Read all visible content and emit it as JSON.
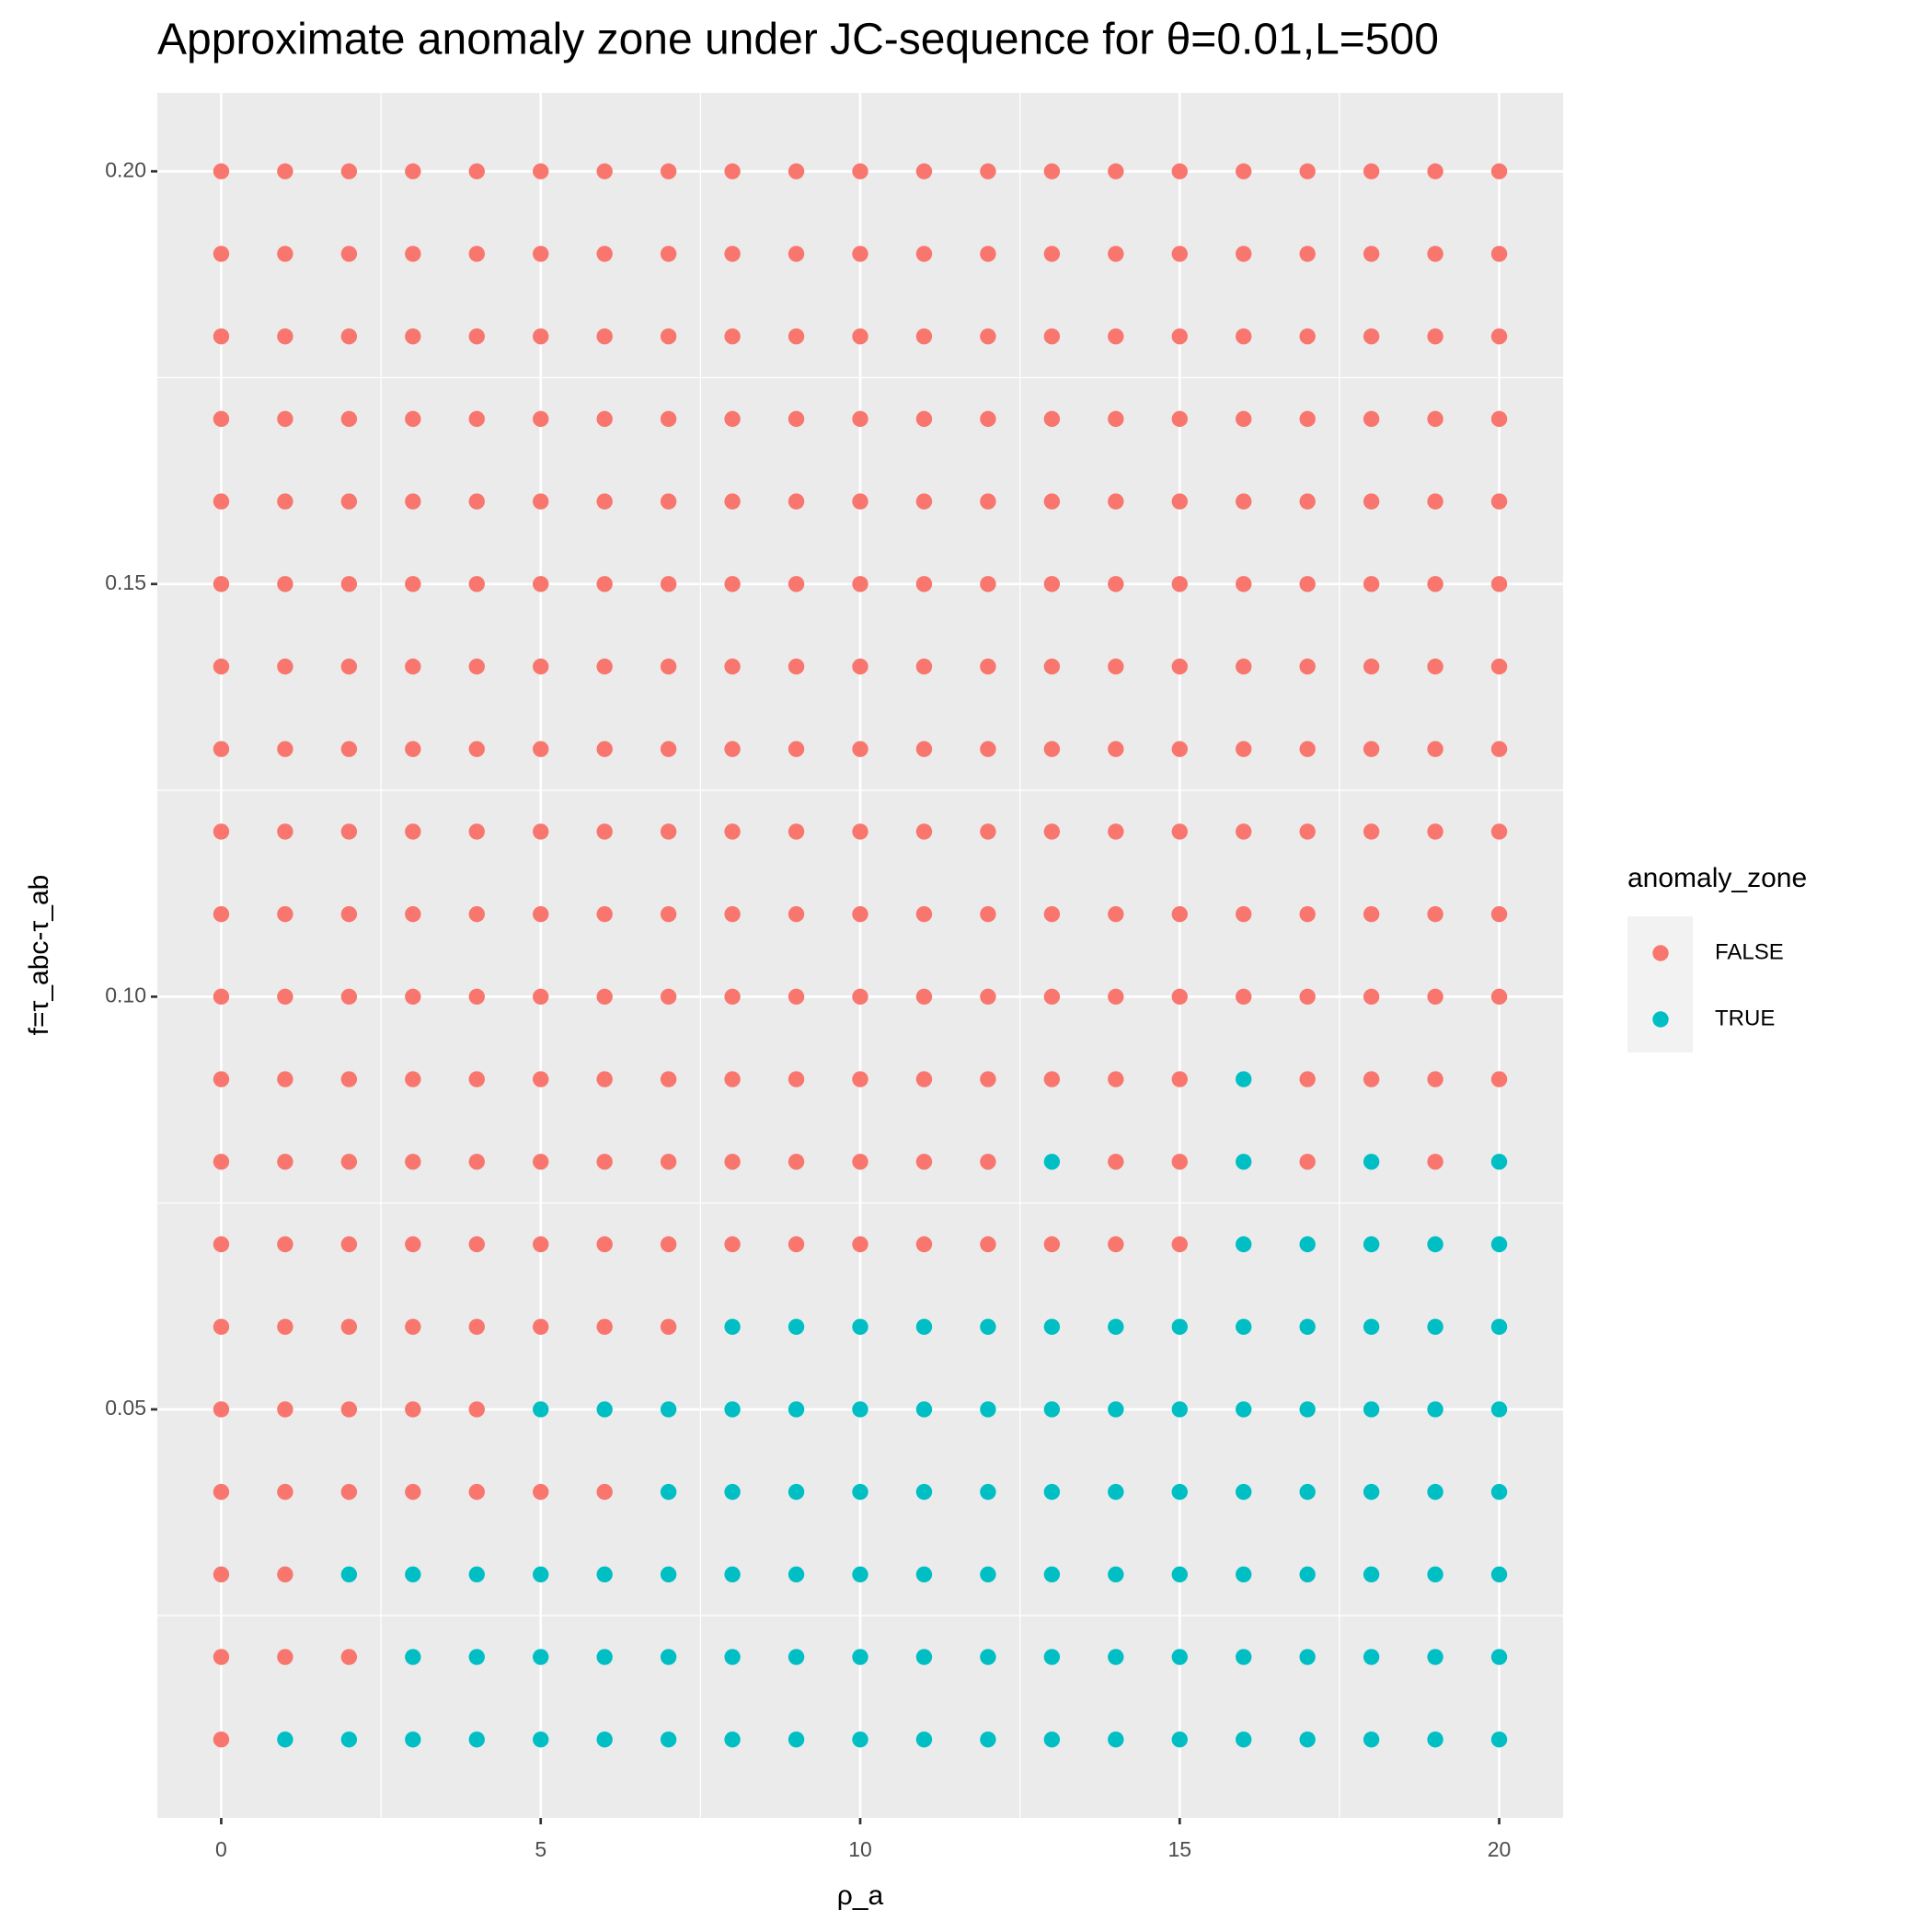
{
  "chart_data": {
    "type": "scatter",
    "title": "Approximate anomaly zone under JC-sequence for θ=0.01,L=500",
    "x_label": "ρ_a",
    "y_label": "f=τ_abc-τ_ab",
    "legend_title": "anomaly_zone",
    "xlim": [
      -1,
      21
    ],
    "ylim": [
      0.0005,
      0.2095
    ],
    "xticks": [
      0,
      5,
      10,
      15,
      20
    ],
    "yticks": [
      0.05,
      {
        "value": 0.1,
        "label": "0.10"
      },
      0.15,
      {
        "value": 0.2,
        "label": "0.20"
      }
    ],
    "grid": true,
    "legend": "right",
    "series": [
      {
        "name": "FALSE",
        "color": "#F8766D",
        "x": [
          0,
          0,
          1,
          2,
          0,
          1,
          0,
          1,
          2,
          3,
          4,
          5,
          6,
          0,
          1,
          2,
          3,
          4,
          0,
          1,
          2,
          3,
          4,
          5,
          6,
          7,
          0,
          1,
          2,
          3,
          4,
          5,
          6,
          7,
          8,
          9,
          10,
          11,
          12,
          13,
          14,
          15,
          0,
          1,
          2,
          3,
          4,
          5,
          6,
          7,
          8,
          9,
          10,
          11,
          12,
          14,
          15,
          17,
          19,
          0,
          1,
          2,
          3,
          4,
          5,
          6,
          7,
          8,
          9,
          10,
          11,
          12,
          13,
          14,
          15,
          17,
          18,
          19,
          20,
          0,
          1,
          2,
          3,
          4,
          5,
          6,
          7,
          8,
          9,
          10,
          11,
          12,
          13,
          14,
          15,
          16,
          17,
          18,
          19,
          20,
          0,
          1,
          2,
          3,
          4,
          5,
          6,
          7,
          8,
          9,
          10,
          11,
          12,
          13,
          14,
          15,
          16,
          17,
          18,
          19,
          20,
          0,
          1,
          2,
          3,
          4,
          5,
          6,
          7,
          8,
          9,
          10,
          11,
          12,
          13,
          14,
          15,
          16,
          17,
          18,
          19,
          20,
          0,
          1,
          2,
          3,
          4,
          5,
          6,
          7,
          8,
          9,
          10,
          11,
          12,
          13,
          14,
          15,
          16,
          17,
          18,
          19,
          20,
          0,
          1,
          2,
          3,
          4,
          5,
          6,
          7,
          8,
          9,
          10,
          11,
          12,
          13,
          14,
          15,
          16,
          17,
          18,
          19,
          20,
          0,
          1,
          2,
          3,
          4,
          5,
          6,
          7,
          8,
          9,
          10,
          11,
          12,
          13,
          14,
          15,
          16,
          17,
          18,
          19,
          20,
          0,
          1,
          2,
          3,
          4,
          5,
          6,
          7,
          8,
          9,
          10,
          11,
          12,
          13,
          14,
          15,
          16,
          17,
          18,
          19,
          20,
          0,
          1,
          2,
          3,
          4,
          5,
          6,
          7,
          8,
          9,
          10,
          11,
          12,
          13,
          14,
          15,
          16,
          17,
          18,
          19,
          20,
          0,
          1,
          2,
          3,
          4,
          5,
          6,
          7,
          8,
          9,
          10,
          11,
          12,
          13,
          14,
          15,
          16,
          17,
          18,
          19,
          20,
          0,
          1,
          2,
          3,
          4,
          5,
          6,
          7,
          8,
          9,
          10,
          11,
          12,
          13,
          14,
          15,
          16,
          17,
          18,
          19,
          20,
          0,
          1,
          2,
          3,
          4,
          5,
          6,
          7,
          8,
          9,
          10,
          11,
          12,
          13,
          14,
          15,
          16,
          17,
          18,
          19,
          20
        ],
        "values": [
          0.01,
          0.02,
          0.02,
          0.02,
          0.03,
          0.03,
          0.04,
          0.04,
          0.04,
          0.04,
          0.04,
          0.04,
          0.04,
          0.05,
          0.05,
          0.05,
          0.05,
          0.05,
          0.06,
          0.06,
          0.06,
          0.06,
          0.06,
          0.06,
          0.06,
          0.06,
          0.07,
          0.07,
          0.07,
          0.07,
          0.07,
          0.07,
          0.07,
          0.07,
          0.07,
          0.07,
          0.07,
          0.07,
          0.07,
          0.07,
          0.07,
          0.07,
          0.08,
          0.08,
          0.08,
          0.08,
          0.08,
          0.08,
          0.08,
          0.08,
          0.08,
          0.08,
          0.08,
          0.08,
          0.08,
          0.08,
          0.08,
          0.08,
          0.08,
          0.09,
          0.09,
          0.09,
          0.09,
          0.09,
          0.09,
          0.09,
          0.09,
          0.09,
          0.09,
          0.09,
          0.09,
          0.09,
          0.09,
          0.09,
          0.09,
          0.09,
          0.09,
          0.09,
          0.09,
          0.1,
          0.1,
          0.1,
          0.1,
          0.1,
          0.1,
          0.1,
          0.1,
          0.1,
          0.1,
          0.1,
          0.1,
          0.1,
          0.1,
          0.1,
          0.1,
          0.1,
          0.1,
          0.1,
          0.1,
          0.1,
          0.11,
          0.11,
          0.11,
          0.11,
          0.11,
          0.11,
          0.11,
          0.11,
          0.11,
          0.11,
          0.11,
          0.11,
          0.11,
          0.11,
          0.11,
          0.11,
          0.11,
          0.11,
          0.11,
          0.11,
          0.11,
          0.12,
          0.12,
          0.12,
          0.12,
          0.12,
          0.12,
          0.12,
          0.12,
          0.12,
          0.12,
          0.12,
          0.12,
          0.12,
          0.12,
          0.12,
          0.12,
          0.12,
          0.12,
          0.12,
          0.12,
          0.12,
          0.13,
          0.13,
          0.13,
          0.13,
          0.13,
          0.13,
          0.13,
          0.13,
          0.13,
          0.13,
          0.13,
          0.13,
          0.13,
          0.13,
          0.13,
          0.13,
          0.13,
          0.13,
          0.13,
          0.13,
          0.13,
          0.14,
          0.14,
          0.14,
          0.14,
          0.14,
          0.14,
          0.14,
          0.14,
          0.14,
          0.14,
          0.14,
          0.14,
          0.14,
          0.14,
          0.14,
          0.14,
          0.14,
          0.14,
          0.14,
          0.14,
          0.14,
          0.15,
          0.15,
          0.15,
          0.15,
          0.15,
          0.15,
          0.15,
          0.15,
          0.15,
          0.15,
          0.15,
          0.15,
          0.15,
          0.15,
          0.15,
          0.15,
          0.15,
          0.15,
          0.15,
          0.15,
          0.15,
          0.16,
          0.16,
          0.16,
          0.16,
          0.16,
          0.16,
          0.16,
          0.16,
          0.16,
          0.16,
          0.16,
          0.16,
          0.16,
          0.16,
          0.16,
          0.16,
          0.16,
          0.16,
          0.16,
          0.16,
          0.16,
          0.17,
          0.17,
          0.17,
          0.17,
          0.17,
          0.17,
          0.17,
          0.17,
          0.17,
          0.17,
          0.17,
          0.17,
          0.17,
          0.17,
          0.17,
          0.17,
          0.17,
          0.17,
          0.17,
          0.17,
          0.17,
          0.18,
          0.18,
          0.18,
          0.18,
          0.18,
          0.18,
          0.18,
          0.18,
          0.18,
          0.18,
          0.18,
          0.18,
          0.18,
          0.18,
          0.18,
          0.18,
          0.18,
          0.18,
          0.18,
          0.18,
          0.18,
          0.19,
          0.19,
          0.19,
          0.19,
          0.19,
          0.19,
          0.19,
          0.19,
          0.19,
          0.19,
          0.19,
          0.19,
          0.19,
          0.19,
          0.19,
          0.19,
          0.19,
          0.19,
          0.19,
          0.19,
          0.19,
          0.2,
          0.2,
          0.2,
          0.2,
          0.2,
          0.2,
          0.2,
          0.2,
          0.2,
          0.2,
          0.2,
          0.2,
          0.2,
          0.2,
          0.2,
          0.2,
          0.2,
          0.2,
          0.2,
          0.2,
          0.2
        ]
      },
      {
        "name": "TRUE",
        "color": "#00BFC4",
        "x": [
          1,
          2,
          3,
          4,
          5,
          6,
          7,
          8,
          9,
          10,
          11,
          12,
          13,
          14,
          15,
          16,
          17,
          18,
          19,
          20,
          3,
          4,
          5,
          6,
          7,
          8,
          9,
          10,
          11,
          12,
          13,
          14,
          15,
          16,
          17,
          18,
          19,
          20,
          2,
          3,
          4,
          5,
          6,
          7,
          8,
          9,
          10,
          11,
          12,
          13,
          14,
          15,
          16,
          17,
          18,
          19,
          20,
          7,
          8,
          9,
          10,
          11,
          12,
          13,
          14,
          15,
          16,
          17,
          18,
          19,
          20,
          5,
          6,
          7,
          8,
          9,
          10,
          11,
          12,
          13,
          14,
          15,
          16,
          17,
          18,
          19,
          20,
          8,
          9,
          10,
          11,
          12,
          13,
          14,
          15,
          16,
          17,
          18,
          19,
          20,
          16,
          17,
          18,
          19,
          20,
          13,
          16,
          18,
          20,
          16
        ],
        "values": [
          0.01,
          0.01,
          0.01,
          0.01,
          0.01,
          0.01,
          0.01,
          0.01,
          0.01,
          0.01,
          0.01,
          0.01,
          0.01,
          0.01,
          0.01,
          0.01,
          0.01,
          0.01,
          0.01,
          0.01,
          0.02,
          0.02,
          0.02,
          0.02,
          0.02,
          0.02,
          0.02,
          0.02,
          0.02,
          0.02,
          0.02,
          0.02,
          0.02,
          0.02,
          0.02,
          0.02,
          0.02,
          0.02,
          0.03,
          0.03,
          0.03,
          0.03,
          0.03,
          0.03,
          0.03,
          0.03,
          0.03,
          0.03,
          0.03,
          0.03,
          0.03,
          0.03,
          0.03,
          0.03,
          0.03,
          0.03,
          0.03,
          0.04,
          0.04,
          0.04,
          0.04,
          0.04,
          0.04,
          0.04,
          0.04,
          0.04,
          0.04,
          0.04,
          0.04,
          0.04,
          0.04,
          0.05,
          0.05,
          0.05,
          0.05,
          0.05,
          0.05,
          0.05,
          0.05,
          0.05,
          0.05,
          0.05,
          0.05,
          0.05,
          0.05,
          0.05,
          0.05,
          0.06,
          0.06,
          0.06,
          0.06,
          0.06,
          0.06,
          0.06,
          0.06,
          0.06,
          0.06,
          0.06,
          0.06,
          0.06,
          0.07,
          0.07,
          0.07,
          0.07,
          0.07,
          0.08,
          0.08,
          0.08,
          0.08,
          0.09
        ]
      }
    ]
  }
}
